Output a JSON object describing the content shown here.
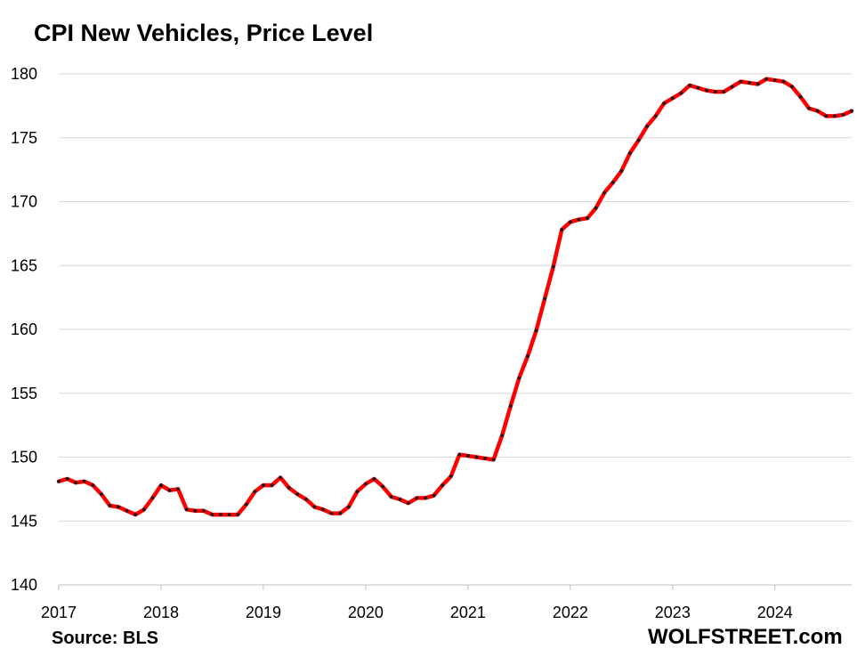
{
  "chart_data": {
    "type": "line",
    "title": "CPI New Vehicles, Price Level",
    "xlabel": "",
    "ylabel": "",
    "ylim": [
      140,
      180
    ],
    "yticks": [
      140,
      145,
      150,
      155,
      160,
      165,
      170,
      175,
      180
    ],
    "xlim": [
      2017,
      2024.75
    ],
    "xticks": [
      "2017",
      "2018",
      "2019",
      "2020",
      "2021",
      "2022",
      "2023",
      "2024"
    ],
    "grid": true,
    "series": [
      {
        "name": "CPI New Vehicles",
        "color": "#ff0000",
        "marker_color": "#1a1a1a",
        "start": "2017-01",
        "frequency": "monthly",
        "values": [
          148.1,
          148.3,
          148.0,
          148.1,
          147.8,
          147.1,
          146.2,
          146.1,
          145.8,
          145.5,
          145.9,
          146.8,
          147.8,
          147.4,
          147.5,
          145.9,
          145.8,
          145.8,
          145.5,
          145.5,
          145.5,
          145.5,
          146.3,
          147.3,
          147.8,
          147.8,
          148.4,
          147.6,
          147.1,
          146.7,
          146.1,
          145.9,
          145.6,
          145.6,
          146.1,
          147.3,
          147.9,
          148.3,
          147.7,
          146.9,
          146.7,
          146.4,
          146.8,
          146.8,
          147.0,
          147.8,
          148.5,
          150.2,
          150.1,
          150.0,
          149.9,
          149.8,
          151.7,
          154.0,
          156.2,
          157.9,
          159.9,
          162.4,
          164.9,
          167.8,
          168.4,
          168.6,
          168.7,
          169.5,
          170.7,
          171.5,
          172.4,
          173.8,
          174.8,
          175.9,
          176.7,
          177.7,
          178.1,
          178.5,
          179.1,
          178.9,
          178.7,
          178.6,
          178.6,
          179.0,
          179.4,
          179.3,
          179.2,
          179.6,
          179.5,
          179.4,
          179.0,
          178.2,
          177.3,
          177.1,
          176.7,
          176.7,
          176.8,
          177.1
        ]
      }
    ]
  },
  "source_label": "Source: BLS",
  "brand_label": "WOLFSTREET.com"
}
